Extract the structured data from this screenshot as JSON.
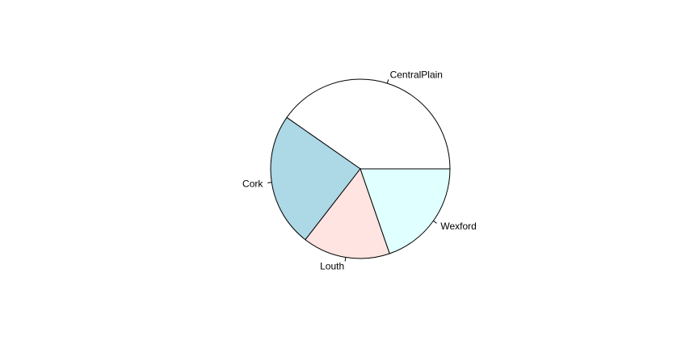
{
  "chart_data": {
    "type": "pie",
    "title": "",
    "categories": [
      "CentralPlain",
      "Cork",
      "Louth",
      "Wexford"
    ],
    "values": [
      40.3,
      24.2,
      15.8,
      19.7
    ],
    "colors": [
      "#FFFFFF",
      "#ADD8E6",
      "#FFE4E1",
      "#E0FFFF"
    ],
    "start_angle_deg": 0,
    "direction": "counterclockwise",
    "legend": "none"
  }
}
